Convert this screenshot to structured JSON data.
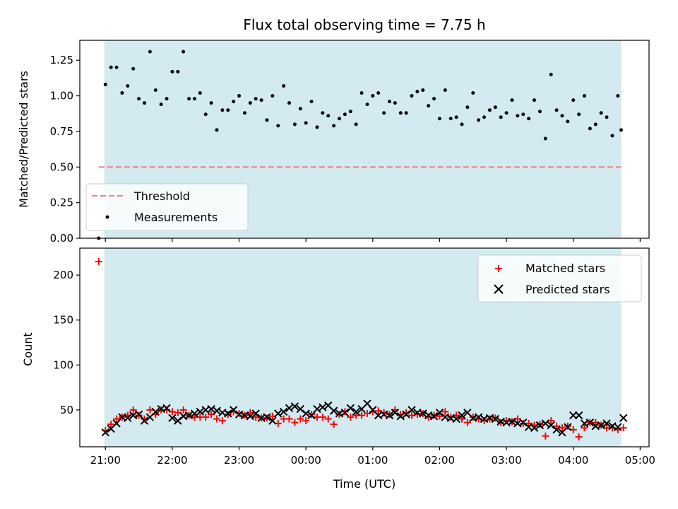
{
  "figure": {
    "title": "Flux total observing time = 7.75 h"
  },
  "chart_data": [
    {
      "type": "scatter",
      "panel": "top",
      "ylabel": "Matched/Predicted stars",
      "ylim": [
        0,
        1.39
      ],
      "yticks": [
        0,
        0.25,
        0.5,
        0.75,
        1.0,
        1.25
      ],
      "ytick_labels": [
        "0.00",
        "0.25",
        "0.50",
        "0.75",
        "1.00",
        "1.25"
      ],
      "xlim": [
        "20:37",
        "05:08"
      ],
      "xticks": [
        "21:00",
        "22:00",
        "23:00",
        "00:00",
        "01:00",
        "02:00",
        "03:00",
        "04:00",
        "05:00"
      ],
      "observing_window": [
        "20:59",
        "04:43"
      ],
      "observing_window_color": "#d3eaf1",
      "threshold": {
        "name": "Threshold",
        "y": 0.5,
        "from": "20:54",
        "to": "04:43",
        "color": "#f08080"
      },
      "legend": {
        "placement": "lower-left",
        "entries": [
          "Threshold",
          "Measurements"
        ]
      },
      "series": [
        {
          "name": "Measurements",
          "color": "#000000",
          "x": [
            "20:54",
            "21:00",
            "21:05",
            "21:10",
            "21:15",
            "21:20",
            "21:25",
            "21:30",
            "21:35",
            "21:40",
            "21:45",
            "21:50",
            "21:55",
            "22:00",
            "22:05",
            "22:10",
            "22:15",
            "22:20",
            "22:25",
            "22:30",
            "22:35",
            "22:40",
            "22:45",
            "22:50",
            "22:55",
            "23:00",
            "23:05",
            "23:10",
            "23:15",
            "23:20",
            "23:25",
            "23:30",
            "23:35",
            "23:40",
            "23:45",
            "23:50",
            "23:55",
            "00:00",
            "00:05",
            "00:10",
            "00:15",
            "00:20",
            "00:25",
            "00:30",
            "00:35",
            "00:40",
            "00:45",
            "00:50",
            "00:55",
            "01:00",
            "01:05",
            "01:10",
            "01:15",
            "01:20",
            "01:25",
            "01:30",
            "01:35",
            "01:40",
            "01:45",
            "01:50",
            "01:55",
            "02:00",
            "02:05",
            "02:10",
            "02:15",
            "02:20",
            "02:25",
            "02:30",
            "02:35",
            "02:40",
            "02:45",
            "02:50",
            "02:55",
            "03:00",
            "03:05",
            "03:10",
            "03:15",
            "03:20",
            "03:25",
            "03:30",
            "03:35",
            "03:40",
            "03:45",
            "03:50",
            "03:55",
            "04:00",
            "04:05",
            "04:10",
            "04:15",
            "04:20",
            "04:25",
            "04:30",
            "04:35",
            "04:40",
            "04:43"
          ],
          "y": [
            0.0,
            1.08,
            1.2,
            1.2,
            1.02,
            1.07,
            1.19,
            0.98,
            0.95,
            1.31,
            1.04,
            0.94,
            0.98,
            1.17,
            1.17,
            1.31,
            0.98,
            0.98,
            1.02,
            0.87,
            0.95,
            0.76,
            0.9,
            0.9,
            0.96,
            1.0,
            0.88,
            0.95,
            0.98,
            0.97,
            0.83,
            1.0,
            0.79,
            1.07,
            0.95,
            0.8,
            0.91,
            0.81,
            0.96,
            0.78,
            0.88,
            0.86,
            0.79,
            0.84,
            0.87,
            0.89,
            0.8,
            1.02,
            0.94,
            1.0,
            1.02,
            0.88,
            0.96,
            0.95,
            0.88,
            0.88,
            1.0,
            1.03,
            1.04,
            0.93,
            0.98,
            0.84,
            1.04,
            0.84,
            0.85,
            0.8,
            0.92,
            1.02,
            0.83,
            0.85,
            0.9,
            0.92,
            0.85,
            0.88,
            0.97,
            0.86,
            0.87,
            0.84,
            0.97,
            0.89,
            0.7,
            1.15,
            0.9,
            0.86,
            0.82,
            0.97,
            0.87,
            1.0,
            0.77,
            0.8,
            0.88,
            0.85,
            0.72,
            1.0,
            0.76
          ]
        }
      ]
    },
    {
      "type": "scatter",
      "panel": "bottom",
      "xlabel": "Time (UTC)",
      "ylabel": "Count",
      "ylim": [
        9,
        230
      ],
      "yticks": [
        50,
        100,
        150,
        200
      ],
      "ytick_labels": [
        "50",
        "100",
        "150",
        "200"
      ],
      "xlim": [
        "20:37",
        "05:08"
      ],
      "xticks": [
        "21:00",
        "22:00",
        "23:00",
        "00:00",
        "01:00",
        "02:00",
        "03:00",
        "04:00",
        "05:00"
      ],
      "xtick_labels": [
        "21:00",
        "22:00",
        "23:00",
        "00:00",
        "01:00",
        "02:00",
        "03:00",
        "04:00",
        "05:00"
      ],
      "observing_window": [
        "20:59",
        "04:43"
      ],
      "observing_window_color": "#d3eaf1",
      "legend": {
        "placement": "top-right",
        "entries": [
          "Matched stars",
          "Predicted stars"
        ]
      },
      "series": [
        {
          "name": "Matched stars",
          "marker": "plus",
          "color": "#ff0000",
          "x": [
            "20:54",
            "21:00",
            "21:05",
            "21:10",
            "21:15",
            "21:20",
            "21:25",
            "21:30",
            "21:35",
            "21:40",
            "21:45",
            "21:50",
            "21:55",
            "22:00",
            "22:05",
            "22:10",
            "22:15",
            "22:20",
            "22:25",
            "22:30",
            "22:35",
            "22:40",
            "22:45",
            "22:50",
            "22:55",
            "23:00",
            "23:05",
            "23:10",
            "23:15",
            "23:20",
            "23:25",
            "23:30",
            "23:35",
            "23:40",
            "23:45",
            "23:50",
            "23:55",
            "00:00",
            "00:05",
            "00:10",
            "00:15",
            "00:20",
            "00:25",
            "00:30",
            "00:35",
            "00:40",
            "00:45",
            "00:50",
            "00:55",
            "01:00",
            "01:05",
            "01:10",
            "01:15",
            "01:20",
            "01:25",
            "01:30",
            "01:35",
            "01:40",
            "01:45",
            "01:50",
            "01:55",
            "02:00",
            "02:05",
            "02:10",
            "02:15",
            "02:20",
            "02:25",
            "02:30",
            "02:35",
            "02:40",
            "02:45",
            "02:50",
            "02:55",
            "03:00",
            "03:05",
            "03:10",
            "03:15",
            "03:20",
            "03:25",
            "03:30",
            "03:35",
            "03:40",
            "03:45",
            "03:50",
            "03:55",
            "04:00",
            "04:05",
            "04:10",
            "04:15",
            "04:20",
            "04:25",
            "04:30",
            "04:35",
            "04:40",
            "04:45"
          ],
          "y": [
            215,
            27,
            34,
            40,
            42,
            44,
            50,
            44,
            40,
            50,
            45,
            50,
            50,
            48,
            47,
            50,
            44,
            42,
            42,
            42,
            45,
            40,
            38,
            45,
            48,
            46,
            44,
            47,
            42,
            41,
            41,
            43,
            35,
            40,
            40,
            36,
            40,
            38,
            45,
            42,
            42,
            40,
            34,
            45,
            48,
            42,
            44,
            44,
            46,
            48,
            49,
            47,
            45,
            50,
            45,
            47,
            44,
            45,
            46,
            42,
            44,
            43,
            48,
            42,
            44,
            40,
            36,
            42,
            40,
            38,
            40,
            41,
            36,
            38,
            37,
            40,
            35,
            35,
            33,
            34,
            21,
            38,
            32,
            30,
            32,
            28,
            20,
            30,
            36,
            36,
            33,
            30,
            30,
            28,
            30
          ]
        },
        {
          "name": "Predicted stars",
          "marker": "x",
          "color": "#000000",
          "x": [
            "21:00",
            "21:05",
            "21:10",
            "21:15",
            "21:20",
            "21:25",
            "21:30",
            "21:35",
            "21:40",
            "21:45",
            "21:50",
            "21:55",
            "22:00",
            "22:05",
            "22:10",
            "22:15",
            "22:20",
            "22:25",
            "22:30",
            "22:35",
            "22:40",
            "22:45",
            "22:50",
            "22:55",
            "23:00",
            "23:05",
            "23:10",
            "23:15",
            "23:20",
            "23:25",
            "23:30",
            "23:35",
            "23:40",
            "23:45",
            "23:50",
            "23:55",
            "00:00",
            "00:05",
            "00:10",
            "00:15",
            "00:20",
            "00:25",
            "00:30",
            "00:35",
            "00:40",
            "00:45",
            "00:50",
            "00:55",
            "01:00",
            "01:05",
            "01:10",
            "01:15",
            "01:20",
            "01:25",
            "01:30",
            "01:35",
            "01:40",
            "01:45",
            "01:50",
            "01:55",
            "02:00",
            "02:05",
            "02:10",
            "02:15",
            "02:20",
            "02:25",
            "02:30",
            "02:35",
            "02:40",
            "02:45",
            "02:50",
            "02:55",
            "03:00",
            "03:05",
            "03:10",
            "03:15",
            "03:20",
            "03:25",
            "03:30",
            "03:35",
            "03:40",
            "03:45",
            "03:50",
            "03:55",
            "04:00",
            "04:05",
            "04:10",
            "04:15",
            "04:20",
            "04:25",
            "04:30",
            "04:35",
            "04:40",
            "04:45"
          ],
          "y": [
            25,
            29,
            35,
            42,
            41,
            44,
            45,
            38,
            42,
            48,
            51,
            52,
            41,
            38,
            43,
            44,
            46,
            48,
            50,
            51,
            49,
            47,
            46,
            50,
            45,
            44,
            43,
            46,
            41,
            42,
            38,
            46,
            48,
            52,
            54,
            51,
            46,
            44,
            51,
            53,
            55,
            49,
            46,
            47,
            52,
            48,
            51,
            57,
            50,
            44,
            45,
            44,
            47,
            43,
            45,
            50,
            47,
            46,
            44,
            43,
            47,
            42,
            41,
            40,
            44,
            47,
            41,
            42,
            40,
            41,
            40,
            37,
            36,
            37,
            35,
            36,
            31,
            30,
            33,
            35,
            33,
            28,
            25,
            31,
            44,
            44,
            35,
            36,
            32,
            33,
            35,
            32,
            31,
            41
          ]
        }
      ]
    }
  ]
}
